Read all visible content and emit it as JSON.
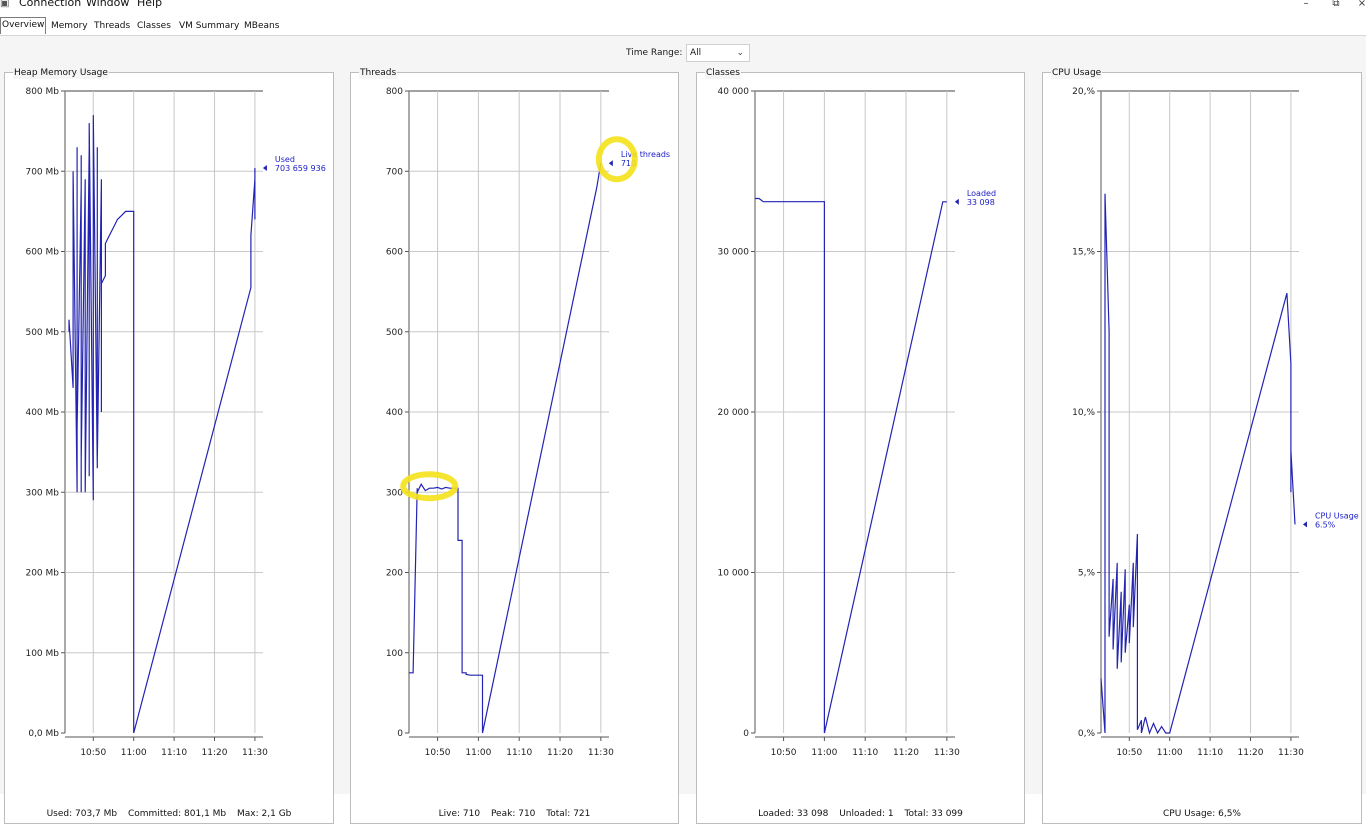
{
  "menu": {
    "items": [
      "Connection",
      "Window",
      "Help"
    ],
    "window_buttons": [
      "–",
      "⧉",
      "×"
    ]
  },
  "tabs": [
    {
      "label": "Overview",
      "active": true
    },
    {
      "label": "Memory",
      "active": false
    },
    {
      "label": "Threads",
      "active": false
    },
    {
      "label": "Classes",
      "active": false
    },
    {
      "label": "VM Summary",
      "active": false
    },
    {
      "label": "MBeans",
      "active": false
    }
  ],
  "time_range": {
    "label": "Time Range:",
    "value": "All"
  },
  "colors": {
    "series": "#2323b4",
    "grid": "#c8c8c8",
    "highlight": "#f5e21a"
  },
  "chart_data": [
    {
      "type": "line",
      "title": "Heap Memory Usage",
      "x_ticks": [
        "10:50",
        "11:00",
        "11:10",
        "11:20",
        "11:30"
      ],
      "y_ticks": [
        "0,0 Mb",
        "100 Mb",
        "200 Mb",
        "300 Mb",
        "400 Mb",
        "500 Mb",
        "600 Mb",
        "700 Mb",
        "800 Mb"
      ],
      "ylim": [
        0,
        800
      ],
      "xlim": [
        "10:43",
        "11:32"
      ],
      "grid": true,
      "series": [
        {
          "name": "Used",
          "x": [
            "10:44",
            "10:44",
            "10:45",
            "10:45",
            "10:46",
            "10:46",
            "10:46",
            "10:47",
            "10:47",
            "10:47",
            "10:47",
            "10:48",
            "10:48",
            "10:49",
            "10:49",
            "10:49",
            "10:50",
            "10:50",
            "10:51",
            "10:51",
            "10:51",
            "10:52",
            "10:52",
            "10:52",
            "10:53",
            "10:53",
            "10:53",
            "10:54",
            "10:55",
            "10:56",
            "10:57",
            "10:58",
            "10:59",
            "11:00",
            "11:00",
            "11:00",
            "11:29",
            "11:29",
            "11:30",
            "11:30",
            "11:30"
          ],
          "y": [
            500,
            515,
            430,
            700,
            300,
            730,
            380,
            680,
            300,
            720,
            340,
            690,
            300,
            730,
            320,
            760,
            290,
            770,
            330,
            730,
            340,
            690,
            400,
            560,
            570,
            600,
            610,
            620,
            630,
            640,
            645,
            650,
            650,
            650,
            0,
            0,
            555,
            620,
            690,
            640,
            704
          ]
        }
      ],
      "annotation": {
        "label": "Used",
        "value": "703 659 936"
      },
      "footer": [
        "Used: 703,7 Mb",
        "Committed: 801,1 Mb",
        "Max: 2,1 Gb"
      ]
    },
    {
      "type": "line",
      "title": "Threads",
      "x_ticks": [
        "10:50",
        "11:00",
        "11:10",
        "11:20",
        "11:30"
      ],
      "y_ticks": [
        "0",
        "100",
        "200",
        "300",
        "400",
        "500",
        "600",
        "700",
        "800"
      ],
      "ylim": [
        0,
        800
      ],
      "xlim": [
        "10:43",
        "11:32"
      ],
      "grid": true,
      "series": [
        {
          "name": "Live threads",
          "x": [
            "10:43",
            "10:44",
            "10:44",
            "10:45",
            "10:45",
            "10:46",
            "10:47",
            "10:48",
            "10:49",
            "10:50",
            "10:51",
            "10:52",
            "10:53",
            "10:54",
            "10:55",
            "10:55",
            "10:56",
            "10:56",
            "10:57",
            "10:57",
            "10:58",
            "10:59",
            "11:00",
            "11:01",
            "11:01",
            "11:29",
            "11:30"
          ],
          "y": [
            75,
            75,
            75,
            305,
            300,
            310,
            302,
            305,
            305,
            306,
            304,
            306,
            305,
            305,
            305,
            240,
            240,
            75,
            75,
            73,
            72,
            72,
            72,
            72,
            0,
            680,
            710
          ]
        }
      ],
      "annotation": {
        "label": "Live threads",
        "value": "710"
      },
      "highlights": [
        "peak-live-threads",
        "current-live-threads"
      ],
      "footer": [
        "Live: 710",
        "Peak: 710",
        "Total: 721"
      ]
    },
    {
      "type": "line",
      "title": "Classes",
      "x_ticks": [
        "10:50",
        "11:00",
        "11:10",
        "11:20",
        "11:30"
      ],
      "y_ticks": [
        "0",
        "10 000",
        "20 000",
        "30 000",
        "40 000"
      ],
      "ylim": [
        0,
        40000
      ],
      "xlim": [
        "10:43",
        "11:32"
      ],
      "grid": true,
      "series": [
        {
          "name": "Loaded",
          "x": [
            "10:43",
            "10:44",
            "10:45",
            "10:47",
            "11:00",
            "11:00",
            "11:00",
            "11:29",
            "11:30"
          ],
          "y": [
            33300,
            33300,
            33100,
            33100,
            33100,
            33100,
            0,
            33098,
            33098
          ]
        }
      ],
      "annotation": {
        "label": "Loaded",
        "value": "33 098"
      },
      "footer": [
        "Loaded: 33 098",
        "Unloaded: 1",
        "Total: 33 099"
      ]
    },
    {
      "type": "line",
      "title": "CPU Usage",
      "x_ticks": [
        "10:50",
        "11:00",
        "11:10",
        "11:20",
        "11:30"
      ],
      "y_ticks": [
        "0,%",
        "5,%",
        "10,%",
        "15,%",
        "20,%"
      ],
      "ylim": [
        0,
        20
      ],
      "xlim": [
        "10:43",
        "11:32"
      ],
      "grid": true,
      "series": [
        {
          "name": "CPU Usage",
          "x": [
            "10:43",
            "10:44",
            "10:44",
            "10:45",
            "10:45",
            "10:46",
            "10:46",
            "10:47",
            "10:47",
            "10:48",
            "10:48",
            "10:49",
            "10:49",
            "10:50",
            "10:50",
            "10:51",
            "10:51",
            "10:52",
            "10:52",
            "10:53",
            "10:53",
            "10:54",
            "10:55",
            "10:56",
            "10:57",
            "10:58",
            "10:59",
            "11:00",
            "11:00",
            "11:29",
            "11:30",
            "11:30",
            "11:30",
            "11:31"
          ],
          "y": [
            1.7,
            0.0,
            16.8,
            12.5,
            3.0,
            4.8,
            2.6,
            5.3,
            2.0,
            4.4,
            2.2,
            5.1,
            2.5,
            4.0,
            2.8,
            5.3,
            3.3,
            6.2,
            0.1,
            0.4,
            0.0,
            0.5,
            0.0,
            0.3,
            0.0,
            0.2,
            0.0,
            0.0,
            0.0,
            13.7,
            11.5,
            7.5,
            8.8,
            6.5
          ]
        }
      ],
      "annotation": {
        "label": "CPU Usage",
        "value": "6.5%"
      },
      "footer": [
        "CPU Usage: 6,5%"
      ]
    }
  ]
}
